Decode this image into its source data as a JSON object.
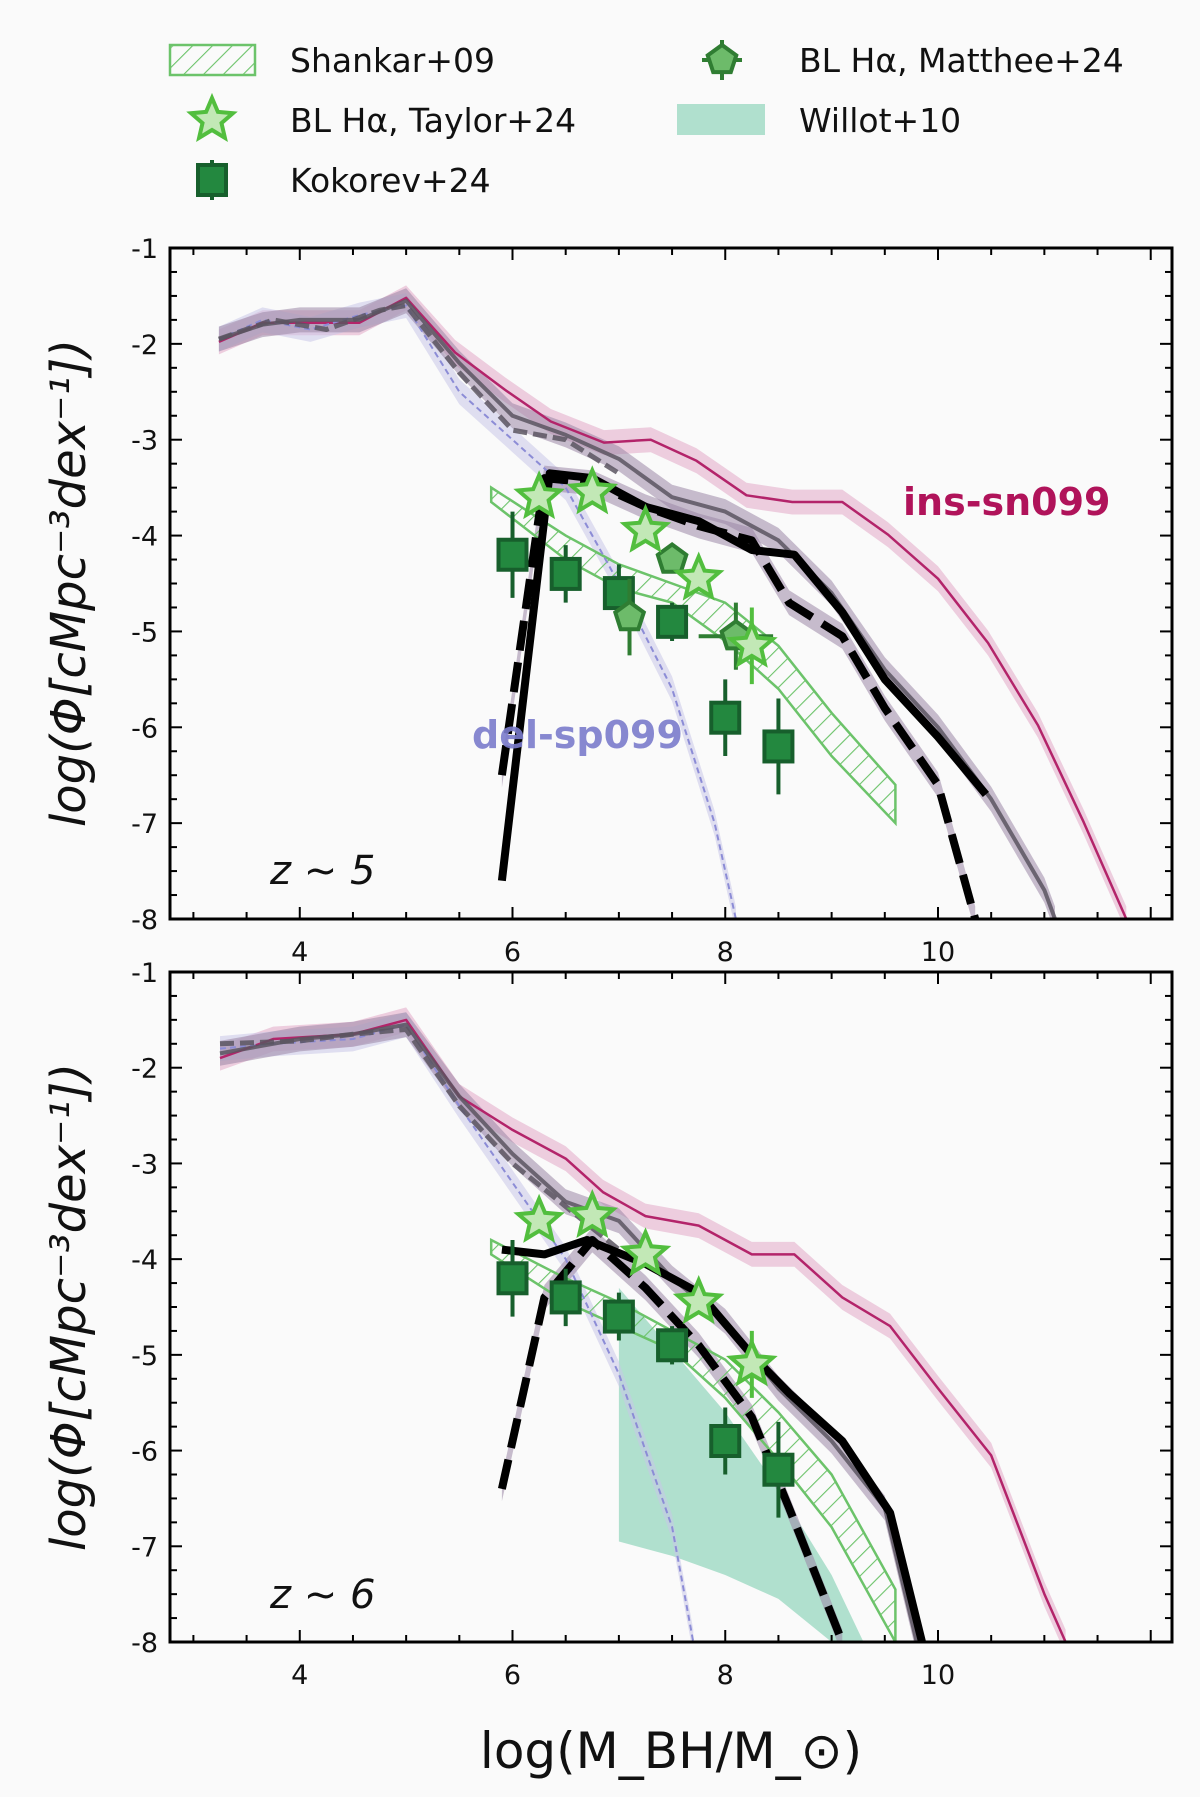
{
  "legend": {
    "items": [
      {
        "label": "Shankar+09",
        "marker": "hatched-band",
        "color": "#6cc36a"
      },
      {
        "label": "BL Hα, Taylor+24",
        "marker": "star",
        "color": "#5cc24a"
      },
      {
        "label": "Kokorev+24",
        "marker": "square",
        "color": "#1e7b3c"
      },
      {
        "label": "BL Hα, Matthee+24",
        "marker": "pentagon",
        "color": "#4fa655"
      },
      {
        "label": "Willot+10",
        "marker": "filled-band",
        "color": "#9ed9c3"
      }
    ],
    "placement": "top"
  },
  "chart_data": [
    {
      "type": "line",
      "annotation": "z ~ 5",
      "xlabel": "",
      "ylabel": "log(Φ[cMpc⁻³dex⁻¹])",
      "xlim": [
        2.78,
        12.2
      ],
      "ylim": [
        -8,
        -1
      ],
      "xticks": [
        "4",
        "6",
        "8",
        "10"
      ],
      "yticks": [
        "-1",
        "-2",
        "-3",
        "-4",
        "-5",
        "-6",
        "-7",
        "-8"
      ],
      "labels": [
        {
          "text": "ins-sn099",
          "color": "#b0135a"
        },
        {
          "text": "del-sp099",
          "color": "#7b7ccc"
        }
      ],
      "series": [
        {
          "id": "ins-sn099",
          "style": "thin-solid",
          "color": "#b3246a",
          "band": "#e2a8c6",
          "x": [
            3.24,
            3.65,
            4.0,
            4.56,
            5.0,
            5.46,
            5.93,
            6.36,
            6.86,
            7.3,
            7.73,
            8.2,
            8.63,
            9.1,
            9.53,
            10.0,
            10.47,
            10.94,
            11.37,
            11.77
          ],
          "y": [
            -1.98,
            -1.78,
            -1.78,
            -1.78,
            -1.52,
            -2.09,
            -2.48,
            -2.81,
            -3.03,
            -3.0,
            -3.22,
            -3.58,
            -3.65,
            -3.65,
            -3.99,
            -4.45,
            -5.12,
            -5.98,
            -6.99,
            -8.0
          ]
        },
        {
          "id": "del-sp099",
          "style": "thin-dashed",
          "color": "#8c8cd6",
          "band": "#c9c6e8",
          "x": [
            3.24,
            3.65,
            4.1,
            4.56,
            5.0,
            5.5,
            6.0,
            6.5,
            7.0,
            7.5,
            7.9,
            8.1
          ],
          "y": [
            -1.95,
            -1.75,
            -1.85,
            -1.7,
            -1.6,
            -2.5,
            -3.0,
            -3.5,
            -4.5,
            -5.6,
            -7.0,
            -8.0
          ]
        },
        {
          "id": "grey-solid",
          "style": "medium-solid",
          "color": "#5a5560",
          "band": "#9b87a6",
          "x": [
            3.24,
            3.65,
            4.0,
            4.56,
            5.0,
            5.5,
            6.0,
            6.5,
            7.0,
            7.5,
            8.0,
            8.5,
            9.0,
            9.5,
            10.0,
            10.5,
            11.0,
            11.1
          ],
          "y": [
            -1.95,
            -1.8,
            -1.75,
            -1.75,
            -1.55,
            -2.2,
            -2.75,
            -2.95,
            -3.2,
            -3.6,
            -3.75,
            -4.05,
            -4.6,
            -5.4,
            -6.0,
            -6.75,
            -7.7,
            -8.0
          ]
        },
        {
          "id": "grey-dashed",
          "style": "medium-dashed",
          "color": "#5a5560",
          "band": null,
          "x": [
            3.24,
            3.75,
            4.25,
            4.75,
            5.0,
            5.5,
            6.0,
            6.5,
            7.0
          ],
          "y": [
            -1.95,
            -1.75,
            -1.85,
            -1.65,
            -1.6,
            -2.3,
            -2.9,
            -3.0,
            -3.35
          ]
        },
        {
          "id": "black-solid",
          "style": "thick-solid",
          "color": "#000000",
          "band": null,
          "x": [
            5.9,
            6.35,
            6.75,
            7.25,
            7.75,
            8.25,
            8.65,
            9.1,
            9.5,
            10.0,
            10.45
          ],
          "y": [
            -7.6,
            -3.35,
            -3.4,
            -3.7,
            -3.85,
            -4.15,
            -4.2,
            -4.8,
            -5.5,
            -6.1,
            -6.7
          ]
        },
        {
          "id": "black-dashed",
          "style": "thick-dashed",
          "color": "#000000",
          "band": "#9b87a6",
          "x": [
            5.9,
            6.3,
            6.75,
            7.25,
            7.75,
            8.25,
            8.6,
            9.1,
            9.5,
            10.0,
            10.35
          ],
          "y": [
            -6.5,
            -3.4,
            -3.45,
            -3.7,
            -3.9,
            -4.05,
            -4.7,
            -5.05,
            -5.8,
            -6.6,
            -8.0
          ]
        }
      ],
      "shankar09": {
        "x": [
          5.8,
          6.5,
          7.0,
          7.5,
          8.0,
          8.5,
          9.0,
          9.6
        ],
        "upper": [
          -3.5,
          -4.0,
          -4.3,
          -4.5,
          -4.7,
          -5.15,
          -5.85,
          -6.6
        ],
        "lower": [
          -3.65,
          -4.25,
          -4.55,
          -4.7,
          -5.1,
          -5.6,
          -6.3,
          -7.0
        ]
      },
      "kokorev24": {
        "x": [
          6.0,
          6.5,
          7.0,
          7.5,
          8.0,
          8.5
        ],
        "y": [
          -4.2,
          -4.4,
          -4.6,
          -4.9,
          -5.9,
          -6.2
        ],
        "yerr": [
          0.45,
          0.3,
          0.3,
          0.2,
          0.4,
          0.5
        ]
      },
      "taylor24": {
        "x": [
          6.25,
          6.75,
          7.25,
          7.75,
          8.25
        ],
        "y": [
          -3.6,
          -3.55,
          -3.95,
          -4.45,
          -5.15
        ],
        "yerr": [
          0.1,
          0.1,
          0.1,
          0.1,
          0.4
        ]
      },
      "matthee24": {
        "x": [
          7.5,
          7.1,
          8.1
        ],
        "y": [
          -4.25,
          -4.85,
          -5.05
        ],
        "yerr": [
          0.1,
          0.4,
          0.35
        ],
        "xerr": [
          0,
          0,
          0.35
        ]
      }
    },
    {
      "type": "line",
      "annotation": "z ~ 6",
      "xlabel": "log(M_BH/M_⊙)",
      "ylabel": "log(Φ[cMpc⁻³dex⁻¹])",
      "xlim": [
        2.78,
        12.2
      ],
      "ylim": [
        -8,
        -1
      ],
      "xticks": [
        "4",
        "6",
        "8",
        "10"
      ],
      "yticks": [
        "-1",
        "-2",
        "-3",
        "-4",
        "-5",
        "-6",
        "-7",
        "-8"
      ],
      "series": [
        {
          "id": "ins-sn099",
          "style": "thin-solid",
          "color": "#b3246a",
          "band": "#e2a8c6",
          "x": [
            3.25,
            3.75,
            4.5,
            5.0,
            5.5,
            6.0,
            6.5,
            6.85,
            7.25,
            7.75,
            8.25,
            8.65,
            9.1,
            9.55,
            10.0,
            10.5,
            11.0,
            11.2
          ],
          "y": [
            -1.9,
            -1.7,
            -1.65,
            -1.5,
            -2.3,
            -2.65,
            -2.95,
            -3.3,
            -3.55,
            -3.65,
            -3.95,
            -3.95,
            -4.4,
            -4.7,
            -5.35,
            -6.05,
            -7.5,
            -8.0
          ]
        },
        {
          "id": "del-sp099",
          "style": "thin-dashed",
          "color": "#8c8cd6",
          "band": "#c9c6e8",
          "x": [
            3.25,
            3.75,
            4.5,
            5.0,
            5.5,
            6.0,
            6.5,
            7.0,
            7.5,
            7.7
          ],
          "y": [
            -1.8,
            -1.75,
            -1.7,
            -1.55,
            -2.4,
            -3.2,
            -4.0,
            -5.2,
            -6.8,
            -8.0
          ]
        },
        {
          "id": "grey-solid",
          "style": "medium-solid",
          "color": "#5a5560",
          "band": "#9b87a6",
          "x": [
            3.25,
            4.0,
            4.5,
            5.0,
            5.5,
            6.0,
            6.5,
            7.0,
            7.5,
            8.0,
            8.5,
            9.0,
            9.5,
            9.8
          ],
          "y": [
            -1.85,
            -1.7,
            -1.65,
            -1.55,
            -2.3,
            -2.9,
            -3.4,
            -3.6,
            -4.2,
            -4.65,
            -5.35,
            -5.9,
            -6.6,
            -8.0
          ]
        },
        {
          "id": "grey-dashed",
          "style": "medium-dashed",
          "color": "#5a5560",
          "band": null,
          "x": [
            3.25,
            4.0,
            4.5,
            5.0,
            5.5,
            6.0,
            6.5,
            7.0
          ],
          "y": [
            -1.75,
            -1.72,
            -1.65,
            -1.6,
            -2.4,
            -3.0,
            -3.45,
            -3.9
          ]
        },
        {
          "id": "black-solid",
          "style": "thick-solid",
          "color": "#000000",
          "band": null,
          "x": [
            5.9,
            6.3,
            6.7,
            7.25,
            7.75,
            8.25,
            8.6,
            9.1,
            9.55,
            9.85
          ],
          "y": [
            -3.9,
            -3.95,
            -3.8,
            -4.05,
            -4.35,
            -5.0,
            -5.4,
            -5.9,
            -6.65,
            -8.0
          ]
        },
        {
          "id": "black-dashed",
          "style": "thick-dashed",
          "color": "#000000",
          "band": "#9b87a6",
          "x": [
            5.9,
            6.3,
            6.75,
            7.25,
            7.75,
            8.25,
            8.6,
            9.1
          ],
          "y": [
            -6.4,
            -4.4,
            -3.8,
            -4.3,
            -4.9,
            -5.65,
            -6.6,
            -8.0
          ]
        }
      ],
      "shankar09": {
        "x": [
          5.8,
          6.5,
          7.0,
          7.5,
          8.0,
          8.5,
          9.0,
          9.6
        ],
        "upper": [
          -3.8,
          -4.2,
          -4.45,
          -4.75,
          -5.05,
          -5.6,
          -6.25,
          -7.45
        ],
        "lower": [
          -3.95,
          -4.45,
          -4.7,
          -4.95,
          -5.45,
          -6.1,
          -6.8,
          -8.0
        ]
      },
      "willot10": {
        "x": [
          7.0,
          7.5,
          8.0,
          8.5,
          9.0,
          9.3
        ],
        "upper": [
          -4.3,
          -4.95,
          -5.6,
          -6.4,
          -7.3,
          -8.0
        ],
        "lower": [
          -6.95,
          -7.1,
          -7.3,
          -7.55,
          -8.0,
          -8.0
        ]
      },
      "kokorev24": {
        "x": [
          6.0,
          6.5,
          7.0,
          7.5,
          8.0,
          8.5
        ],
        "y": [
          -4.2,
          -4.4,
          -4.6,
          -4.9,
          -5.9,
          -6.2
        ],
        "yerr": [
          0.4,
          0.3,
          0.25,
          0.2,
          0.35,
          0.5
        ]
      },
      "taylor24": {
        "x": [
          6.25,
          6.75,
          7.25,
          7.75,
          8.25
        ],
        "y": [
          -3.6,
          -3.55,
          -3.95,
          -4.45,
          -5.1
        ],
        "yerr": [
          0.1,
          0.1,
          0.1,
          0.1,
          0.35
        ]
      }
    }
  ]
}
